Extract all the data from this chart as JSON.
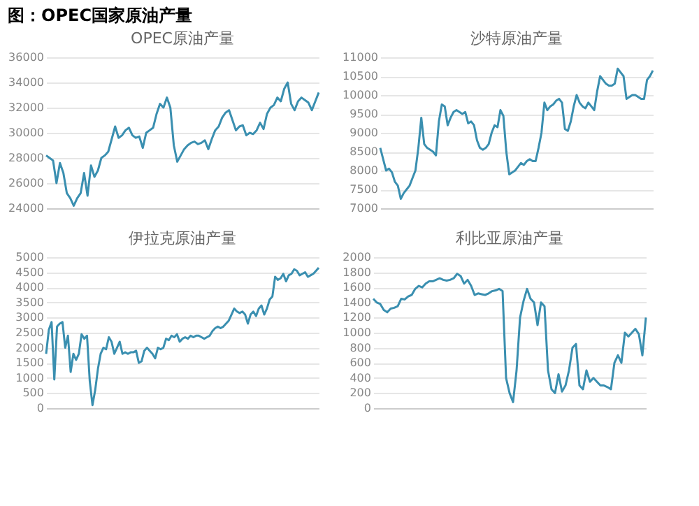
{
  "chart_data": [
    {
      "type": "line",
      "title": "OPEC原油产量",
      "annotations": [
        "图：OPEC国家原油产量"
      ],
      "tick_labels": "y",
      "grid": "y",
      "ylim": [
        24000,
        36000
      ],
      "yticks": [
        24000,
        26000,
        28000,
        30000,
        32000,
        34000,
        36000
      ],
      "series": [
        {
          "color": "#3a8fb0",
          "values": [
            28200,
            28000,
            27800,
            26000,
            27600,
            26800,
            25200,
            24800,
            24200,
            24800,
            25200,
            26800,
            25000,
            27400,
            26500,
            27000,
            28000,
            28200,
            28500,
            29500,
            30500,
            29600,
            29800,
            30200,
            30400,
            29800,
            29600,
            29700,
            28800,
            30000,
            30200,
            30400,
            31500,
            32300,
            32000,
            32800,
            32000,
            29000,
            27700,
            28200,
            28700,
            29000,
            29200,
            29300,
            29100,
            29200,
            29400,
            28700,
            29500,
            30200,
            30500,
            31200,
            31600,
            31800,
            31000,
            30200,
            30500,
            30600,
            29800,
            30000,
            29900,
            30200,
            30800,
            30300,
            31500,
            32000,
            32200,
            32800,
            32500,
            33500,
            34000,
            32300,
            31800,
            32500,
            32800,
            32600,
            32400,
            31800,
            32500,
            33200
          ]
        }
      ]
    },
    {
      "type": "line",
      "title": "沙特原油产量",
      "tick_labels": "y",
      "grid": "y",
      "ylim": [
        7000,
        11000
      ],
      "yticks": [
        7000,
        7500,
        8000,
        8500,
        9000,
        9500,
        10000,
        10500,
        11000
      ],
      "series": [
        {
          "color": "#3a8fb0",
          "values": [
            8600,
            8300,
            8000,
            8050,
            7950,
            7700,
            7600,
            7250,
            7400,
            7500,
            7600,
            7800,
            8000,
            8600,
            9400,
            8700,
            8600,
            8550,
            8500,
            8400,
            9300,
            9750,
            9700,
            9200,
            9400,
            9550,
            9600,
            9550,
            9500,
            9550,
            9250,
            9300,
            9200,
            8800,
            8600,
            8550,
            8600,
            8700,
            9000,
            9200,
            9150,
            9600,
            9450,
            8500,
            7900,
            7950,
            8000,
            8100,
            8200,
            8150,
            8250,
            8300,
            8250,
            8250,
            8600,
            9000,
            9800,
            9600,
            9700,
            9750,
            9850,
            9900,
            9800,
            9100,
            9050,
            9300,
            9700,
            10000,
            9800,
            9700,
            9650,
            9800,
            9700,
            9600,
            10100,
            10500,
            10400,
            10300,
            10250,
            10250,
            10300,
            10700,
            10600,
            10500,
            9900,
            9950,
            10000,
            10000,
            9950,
            9900,
            9900,
            10400,
            10500,
            10650
          ]
        }
      ]
    },
    {
      "type": "line",
      "title": "伊拉克原油产量",
      "tick_labels": "y",
      "grid": "y",
      "ylim": [
        0,
        5000
      ],
      "yticks": [
        0,
        500,
        1000,
        1500,
        2000,
        2500,
        3000,
        3500,
        4000,
        4500,
        5000
      ],
      "series": [
        {
          "color": "#3a8fb0",
          "values": [
            1800,
            2600,
            2850,
            950,
            2700,
            2800,
            2850,
            2000,
            2400,
            1200,
            1800,
            1600,
            1800,
            2450,
            2300,
            2400,
            900,
            100,
            600,
            1300,
            1800,
            2000,
            1950,
            2350,
            2200,
            1800,
            2000,
            2200,
            1800,
            1850,
            1800,
            1850,
            1850,
            1900,
            1500,
            1550,
            1900,
            2000,
            1900,
            1800,
            1650,
            2000,
            1950,
            2000,
            2300,
            2250,
            2400,
            2350,
            2450,
            2200,
            2300,
            2350,
            2300,
            2400,
            2350,
            2400,
            2400,
            2350,
            2300,
            2350,
            2400,
            2550,
            2650,
            2700,
            2650,
            2700,
            2800,
            2900,
            3100,
            3300,
            3200,
            3150,
            3200,
            3100,
            2800,
            3100,
            3200,
            3050,
            3300,
            3400,
            3100,
            3300,
            3600,
            3700,
            4350,
            4250,
            4300,
            4450,
            4200,
            4400,
            4450,
            4600,
            4550,
            4400,
            4450,
            4500,
            4350,
            4400,
            4450,
            4550,
            4650
          ]
        }
      ]
    },
    {
      "type": "line",
      "title": "利比亚原油产量",
      "tick_labels": "y",
      "grid": "y",
      "ylim": [
        0,
        2000
      ],
      "yticks": [
        0,
        200,
        400,
        600,
        800,
        1000,
        1200,
        1400,
        1600,
        1800,
        2000
      ],
      "series": [
        {
          "color": "#3a8fb0",
          "values": [
            1450,
            1400,
            1380,
            1300,
            1270,
            1320,
            1330,
            1350,
            1450,
            1440,
            1480,
            1500,
            1580,
            1620,
            1600,
            1650,
            1680,
            1680,
            1700,
            1720,
            1700,
            1690,
            1700,
            1720,
            1780,
            1750,
            1650,
            1700,
            1620,
            1500,
            1520,
            1510,
            1500,
            1520,
            1550,
            1560,
            1580,
            1550,
            400,
            200,
            80,
            500,
            1200,
            1420,
            1580,
            1450,
            1400,
            1100,
            1400,
            1350,
            500,
            250,
            200,
            450,
            220,
            300,
            500,
            800,
            850,
            300,
            250,
            500,
            350,
            400,
            350,
            300,
            300,
            280,
            250,
            600,
            700,
            600,
            1000,
            950,
            1000,
            1050,
            980,
            700,
            1200
          ]
        }
      ]
    }
  ]
}
